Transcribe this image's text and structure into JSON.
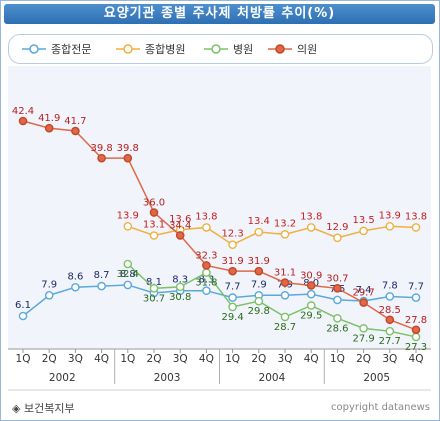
{
  "chart_data": {
    "type": "line",
    "title": "요양기관 종별 주사제 처방률 추이(%)",
    "categories": [
      "1Q",
      "2Q",
      "3Q",
      "4Q",
      "1Q",
      "2Q",
      "3Q",
      "4Q",
      "1Q",
      "2Q",
      "3Q",
      "4Q",
      "1Q",
      "2Q",
      "3Q",
      "4Q"
    ],
    "years": [
      "2002",
      "2003",
      "2004",
      "2005"
    ],
    "series": [
      {
        "name": "종합전문",
        "color": "#5aa8dc",
        "label_color": "#1c2a66",
        "values": [
          6.1,
          7.9,
          8.6,
          8.7,
          8.8,
          8.1,
          8.3,
          8.3,
          7.7,
          7.9,
          7.9,
          8.0,
          7.5,
          7.4,
          7.8,
          7.7
        ]
      },
      {
        "name": "종합병원",
        "color": "#f0b040",
        "label_color": "#c81e1e",
        "values": [
          null,
          null,
          null,
          null,
          13.9,
          13.1,
          13.6,
          13.8,
          12.3,
          13.4,
          13.2,
          13.8,
          12.9,
          13.5,
          13.9,
          13.8
        ]
      },
      {
        "name": "병원",
        "color": "#7cc26a",
        "label_color": "#2a6b1c",
        "values": [
          null,
          null,
          null,
          null,
          32.4,
          30.7,
          30.8,
          31.8,
          29.4,
          29.8,
          28.7,
          29.5,
          28.6,
          27.9,
          27.7,
          27.3
        ]
      },
      {
        "name": "의원",
        "color": "#e06848",
        "label_color": "#b82020",
        "values": [
          42.4,
          41.9,
          41.7,
          39.8,
          39.8,
          36.0,
          34.4,
          32.3,
          31.9,
          31.9,
          31.1,
          30.9,
          30.7,
          29.7,
          28.5,
          27.8
        ]
      }
    ],
    "grid": false,
    "legend_position": "top"
  },
  "footer": {
    "source": "◈ 보건복지부",
    "copyright": "copyright datanews"
  }
}
